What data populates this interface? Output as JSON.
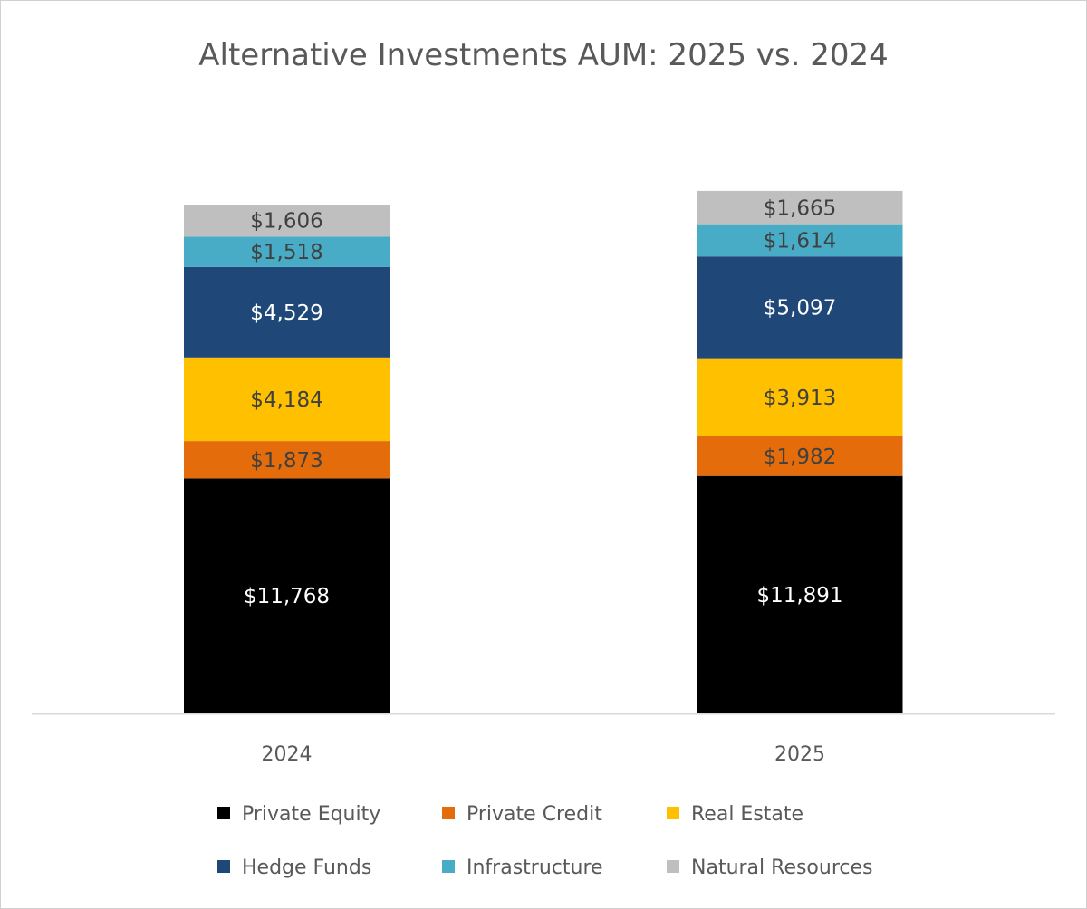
{
  "chart_data": {
    "type": "bar",
    "stacked": true,
    "title": "Alternative Investments AUM: 2025 vs. 2024",
    "xlabel": "",
    "ylabel": "",
    "categories": [
      "2024",
      "2025"
    ],
    "ylim": [
      0,
      26500
    ],
    "grid": false,
    "legend_placement": "bottom",
    "series": [
      {
        "name": "Private Equity",
        "values": [
          11768,
          11891
        ],
        "color": "#000000",
        "label_color": "#ffffff",
        "labels": [
          "$11,768",
          "$11,891"
        ]
      },
      {
        "name": "Private Credit",
        "values": [
          1873,
          1982
        ],
        "color": "#E46C0A",
        "label_color": "#404040",
        "labels": [
          "$1,873",
          "$1,982"
        ]
      },
      {
        "name": "Real Estate",
        "values": [
          4184,
          3913
        ],
        "color": "#FFC000",
        "label_color": "#404040",
        "labels": [
          "$4,184",
          "$3,913"
        ]
      },
      {
        "name": "Hedge Funds",
        "values": [
          4529,
          5097
        ],
        "color": "#1F4878",
        "label_color": "#ffffff",
        "labels": [
          "$4,529",
          "$5,097"
        ]
      },
      {
        "name": "Infrastructure",
        "values": [
          1518,
          1614
        ],
        "color": "#48ACC6",
        "label_color": "#404040",
        "labels": [
          "$1,518",
          "$1,614"
        ]
      },
      {
        "name": "Natural Resources",
        "values": [
          1606,
          1665
        ],
        "color": "#BFBFBF",
        "label_color": "#404040",
        "labels": [
          "$1,606",
          "$1,665"
        ]
      }
    ]
  }
}
